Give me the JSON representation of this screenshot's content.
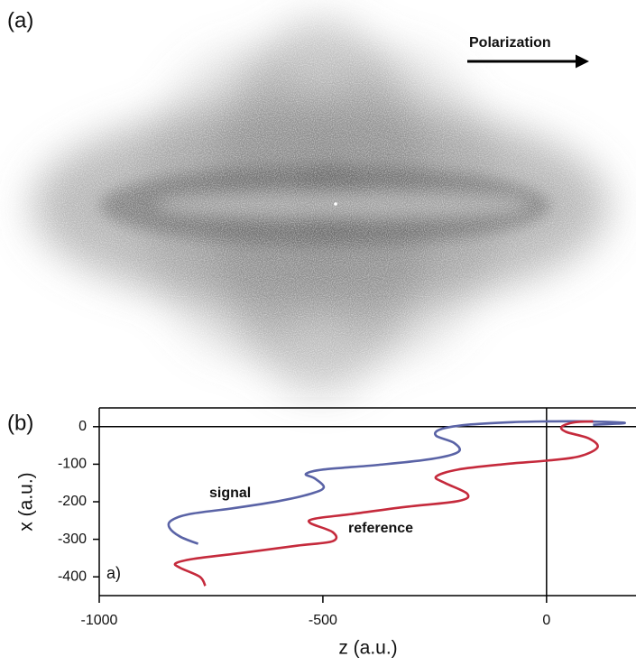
{
  "chart_data": {
    "type": "line",
    "panel_a_label": "(a)",
    "polarization_label": "Polarization",
    "panel_b_label": "(b)",
    "inset_label": "a)",
    "xlabel": "z (a.u.)",
    "ylabel": "x (a.u.)",
    "xlim": [
      -1000,
      200
    ],
    "ylim": [
      -450,
      50
    ],
    "xticks": [
      -1000,
      -500,
      0
    ],
    "yticks": [
      0,
      -100,
      -200,
      -300,
      -400
    ],
    "series": [
      {
        "name": "signal",
        "color": "#5a63a6",
        "x": [
          -779,
          -819,
          -843,
          -839,
          -799,
          -699,
          -598,
          -528,
          -498,
          -518,
          -538,
          -498,
          -378,
          -257,
          -197,
          -207,
          -247,
          -237,
          -177,
          -76,
          4,
          84,
          175,
          104
        ],
        "values": [
          -312,
          -293,
          -269,
          -250,
          -233,
          -217,
          -198,
          -179,
          -162,
          -138,
          -126,
          -114,
          -102,
          -86,
          -67,
          -43,
          -24,
          -7,
          5,
          12,
          14,
          14,
          10,
          5
        ]
      },
      {
        "name": "reference",
        "color": "#c52a3c",
        "x": [
          -763,
          -775,
          -819,
          -829,
          -789,
          -679,
          -558,
          -478,
          -478,
          -528,
          -518,
          -438,
          -317,
          -197,
          -177,
          -227,
          -247,
          -197,
          -96,
          4,
          74,
          114,
          94,
          44,
          34,
          64,
          104
        ],
        "values": [
          -424,
          -400,
          -376,
          -364,
          -352,
          -336,
          -317,
          -305,
          -281,
          -257,
          -245,
          -233,
          -214,
          -198,
          -179,
          -150,
          -133,
          -114,
          -100,
          -90,
          -79,
          -55,
          -31,
          -14,
          0,
          12,
          14
        ]
      }
    ]
  }
}
